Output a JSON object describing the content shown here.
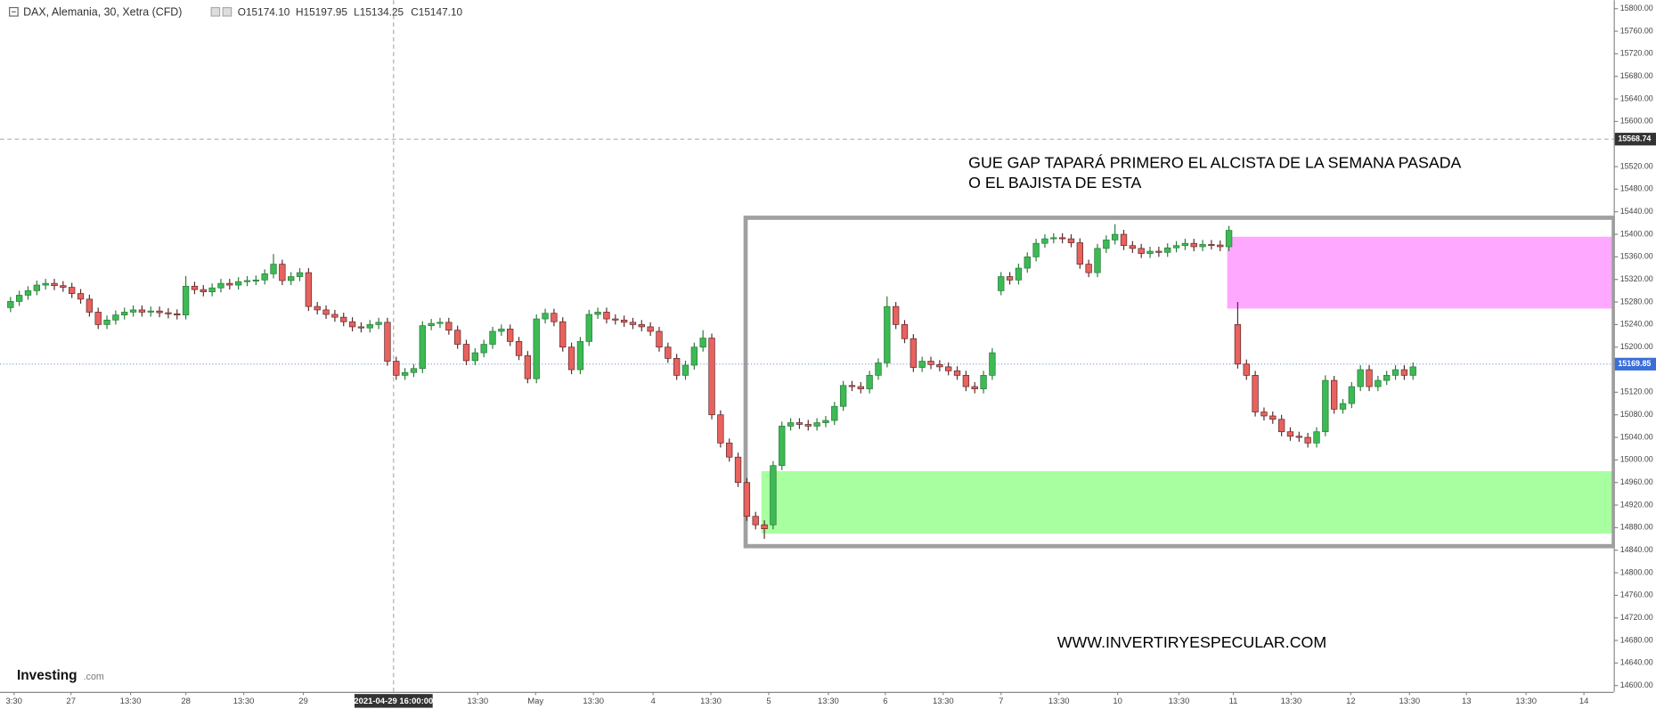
{
  "header": {
    "symbol": "DAX, Alemania, 30, Xetra (CFD)",
    "open": "O15174.10",
    "high": "H15197.95",
    "low": "L15134.25",
    "close": "C15147.10"
  },
  "logo": {
    "brand": "Investing",
    "suffix": ".com"
  },
  "chart_data": {
    "type": "candlestick",
    "up_color": "#3cba54",
    "down_color": "#e8625f",
    "annotations": [
      "GUE GAP TAPARÁ PRIMERO EL ALCISTA DE LA SEMANA PASADA",
      "O EL BAJISTA DE ESTA",
      "WWW.INVERTIRYESPECULAR.COM"
    ],
    "crosshair_price": {
      "value": 15568.74,
      "label": "15568.74"
    },
    "last_price": {
      "value": 15169.85,
      "label": "15169.85"
    },
    "crosshair_time": {
      "value": 43.7,
      "label": "2021-04-29 16:00:00"
    },
    "xlim": [
      -1.2,
      182.9
    ],
    "ylim": [
      14588.8,
      15815
    ],
    "xticks": [
      {
        "value": 0.4,
        "label": "3:30"
      },
      {
        "value": 6.9,
        "label": "27"
      },
      {
        "value": 13.7,
        "label": "13:30"
      },
      {
        "value": 20,
        "label": "28"
      },
      {
        "value": 26.6,
        "label": "13:30"
      },
      {
        "value": 33.4,
        "label": "29"
      },
      {
        "value": 53.3,
        "label": "13:30"
      },
      {
        "value": 59.9,
        "label": "May"
      },
      {
        "value": 66.5,
        "label": "13:30"
      },
      {
        "value": 73.3,
        "label": "4"
      },
      {
        "value": 79.9,
        "label": "13:30"
      },
      {
        "value": 86.5,
        "label": "5"
      },
      {
        "value": 93.3,
        "label": "13:30"
      },
      {
        "value": 99.8,
        "label": "6"
      },
      {
        "value": 106.4,
        "label": "13:30"
      },
      {
        "value": 113,
        "label": "7"
      },
      {
        "value": 119.6,
        "label": "13:30"
      },
      {
        "value": 126.3,
        "label": "10"
      },
      {
        "value": 133.3,
        "label": "13:30"
      },
      {
        "value": 139.5,
        "label": "11"
      },
      {
        "value": 146.1,
        "label": "13:30"
      },
      {
        "value": 152.9,
        "label": "12"
      },
      {
        "value": 159.6,
        "label": "13:30"
      },
      {
        "value": 166.1,
        "label": "13"
      },
      {
        "value": 172.9,
        "label": "13:30"
      },
      {
        "value": 179.5,
        "label": "14"
      }
    ],
    "yticks": [
      {
        "value": 14600,
        "label": "14600.00"
      },
      {
        "value": 14640,
        "label": "14640.00"
      },
      {
        "value": 14680,
        "label": "14680.00"
      },
      {
        "value": 14720,
        "label": "14720.00"
      },
      {
        "value": 14760,
        "label": "14760.00"
      },
      {
        "value": 14800,
        "label": "14800.00"
      },
      {
        "value": 14840,
        "label": "14840.00"
      },
      {
        "value": 14880,
        "label": "14880.00"
      },
      {
        "value": 14920,
        "label": "14920.00"
      },
      {
        "value": 14960,
        "label": "14960.00"
      },
      {
        "value": 15000,
        "label": "15000.00"
      },
      {
        "value": 15040,
        "label": "15040.00"
      },
      {
        "value": 15080,
        "label": "15080.00"
      },
      {
        "value": 15120,
        "label": "15120.00"
      },
      {
        "value": 15200,
        "label": "15200.00"
      },
      {
        "value": 15240,
        "label": "15240.00"
      },
      {
        "value": 15280,
        "label": "15280.00"
      },
      {
        "value": 15320,
        "label": "15320.00"
      },
      {
        "value": 15360,
        "label": "15360.00"
      },
      {
        "value": 15400,
        "label": "15400.00"
      },
      {
        "value": 15440,
        "label": "15440.00"
      },
      {
        "value": 15480,
        "label": "15480.00"
      },
      {
        "value": 15520,
        "label": "15520.00"
      },
      {
        "value": 15600,
        "label": "15600.00"
      },
      {
        "value": 15640,
        "label": "15640.00"
      },
      {
        "value": 15680,
        "label": "15680.00"
      },
      {
        "value": 15720,
        "label": "15720.00"
      },
      {
        "value": 15760,
        "label": "15760.00"
      },
      {
        "value": 15800,
        "label": "15800.00"
      }
    ],
    "open": [
      15270,
      15281,
      15292,
      15300,
      15310,
      15313,
      15309,
      15306,
      15295,
      15285,
      15262,
      15240,
      15248,
      15257,
      15262,
      15266,
      15262,
      15264,
      15261,
      15259,
      15257,
      15308,
      15302,
      15298,
      15305,
      15313,
      15310,
      15316,
      15318,
      15319,
      15330,
      15347,
      15318,
      15325,
      15332,
      15272,
      15266,
      15258,
      15253,
      15245,
      15236,
      15234,
      15240,
      15244,
      15175,
      15150,
      15155,
      15162,
      15238,
      15242,
      15244,
      15230,
      15205,
      15176,
      15190,
      15205,
      15228,
      15232,
      15210,
      15185,
      15144,
      15250,
      15260,
      15245,
      15200,
      15160,
      15210,
      15258,
      15262,
      15250,
      15248,
      15244,
      15240,
      15236,
      15228,
      15200,
      15180,
      15150,
      15168,
      15200,
      15216,
      15080,
      15030,
      15005,
      14960,
      14900,
      14885,
      14885,
      14990,
      15060,
      15066,
      15063,
      15060,
      15066,
      15070,
      15095,
      15132,
      15130,
      15126,
      15150,
      15172,
      15272,
      15240,
      15215,
      15164,
      15175,
      15169,
      15165,
      15158,
      15150,
      15130,
      15126,
      15150,
      15300,
      15325,
      15319,
      15340,
      15360,
      15384,
      15392,
      15394,
      15392,
      15385,
      15347,
      15332,
      15375,
      15390,
      15400,
      15380,
      15375,
      15366,
      15370,
      15368,
      15376,
      15380,
      15384,
      15378,
      15382,
      15381,
      15378,
      15240,
      15170,
      15150,
      15085,
      15078,
      15072,
      15050,
      15042,
      15040,
      15030,
      15050,
      15141,
      15090,
      15100,
      15130,
      15160,
      15130,
      15141,
      15150,
      15160,
      15150
    ],
    "high": [
      15289,
      15300,
      15308,
      15318,
      15321,
      15321,
      15317,
      15314,
      15303,
      15293,
      15270,
      15256,
      15265,
      15270,
      15274,
      15274,
      15272,
      15272,
      15269,
      15267,
      15326,
      15316,
      15310,
      15313,
      15321,
      15321,
      15324,
      15326,
      15327,
      15338,
      15365,
      15355,
      15333,
      15340,
      15340,
      15280,
      15274,
      15266,
      15261,
      15253,
      15244,
      15248,
      15252,
      15252,
      15183,
      15163,
      15170,
      15246,
      15250,
      15252,
      15252,
      15238,
      15213,
      15198,
      15213,
      15236,
      15240,
      15240,
      15218,
      15193,
      15258,
      15268,
      15268,
      15253,
      15208,
      15218,
      15266,
      15270,
      15270,
      15258,
      15256,
      15252,
      15248,
      15244,
      15236,
      15208,
      15188,
      15176,
      15208,
      15230,
      15224,
      15088,
      15038,
      15013,
      14968,
      14908,
      14893,
      14998,
      15068,
      15074,
      15074,
      15071,
      15074,
      15078,
      15103,
      15140,
      15140,
      15138,
      15158,
      15180,
      15290,
      15280,
      15248,
      15223,
      15183,
      15183,
      15177,
      15173,
      15166,
      15158,
      15138,
      15158,
      15198,
      15333,
      15333,
      15348,
      15368,
      15392,
      15400,
      15402,
      15402,
      15400,
      15393,
      15355,
      15383,
      15398,
      15418,
      15408,
      15388,
      15383,
      15378,
      15378,
      15384,
      15388,
      15392,
      15392,
      15390,
      15390,
      15389,
      15415,
      15280,
      15178,
      15158,
      15093,
      15086,
      15080,
      15058,
      15050,
      15048,
      15058,
      15150,
      15149,
      15108,
      15138,
      15168,
      15168,
      15149,
      15158,
      15168,
      15168,
      15173
    ],
    "low": [
      15262,
      15273,
      15284,
      15292,
      15302,
      15301,
      15298,
      15287,
      15277,
      15254,
      15232,
      15232,
      15240,
      15249,
      15254,
      15254,
      15254,
      15253,
      15251,
      15249,
      15249,
      15294,
      15290,
      15290,
      15297,
      15302,
      15302,
      15308,
      15310,
      15311,
      15322,
      15310,
      15310,
      15317,
      15264,
      15258,
      15250,
      15245,
      15237,
      15228,
      15226,
      15226,
      15232,
      15167,
      15142,
      15142,
      15147,
      15154,
      15230,
      15234,
      15222,
      15197,
      15168,
      15168,
      15182,
      15197,
      15220,
      15202,
      15177,
      15136,
      15136,
      15242,
      15237,
      15192,
      15152,
      15152,
      15202,
      15250,
      15242,
      15240,
      15236,
      15232,
      15228,
      15220,
      15192,
      15172,
      15142,
      15142,
      15160,
      15192,
      15072,
      15022,
      14997,
      14952,
      14892,
      14877,
      14860,
      14877,
      14982,
      15052,
      15055,
      15052,
      15052,
      15058,
      15062,
      15087,
      15122,
      15118,
      15118,
      15142,
      15164,
      15232,
      15207,
      15156,
      15156,
      15161,
      15157,
      15150,
      15142,
      15122,
      15118,
      15118,
      15142,
      15292,
      15311,
      15311,
      15332,
      15352,
      15376,
      15384,
      15384,
      15377,
      15339,
      15324,
      15324,
      15367,
      15382,
      15372,
      15367,
      15358,
      15358,
      15360,
      15360,
      15368,
      15372,
      15370,
      15370,
      15373,
      15370,
      15370,
      15162,
      15142,
      15077,
      15070,
      15064,
      15042,
      15034,
      15032,
      15022,
      15022,
      15042,
      15082,
      15082,
      15092,
      15122,
      15122,
      15122,
      15133,
      15142,
      15142,
      15142
    ],
    "close": [
      15281,
      15292,
      15300,
      15310,
      15313,
      15309,
      15306,
      15295,
      15285,
      15262,
      15240,
      15248,
      15257,
      15262,
      15266,
      15262,
      15264,
      15261,
      15259,
      15257,
      15308,
      15302,
      15298,
      15305,
      15313,
      15310,
      15316,
      15318,
      15319,
      15330,
      15347,
      15318,
      15325,
      15332,
      15272,
      15266,
      15258,
      15253,
      15245,
      15236,
      15234,
      15240,
      15244,
      15175,
      15150,
      15155,
      15162,
      15238,
      15242,
      15244,
      15230,
      15205,
      15176,
      15190,
      15205,
      15228,
      15232,
      15210,
      15185,
      15144,
      15250,
      15260,
      15245,
      15200,
      15160,
      15210,
      15258,
      15262,
      15250,
      15248,
      15244,
      15240,
      15236,
      15228,
      15200,
      15180,
      15150,
      15168,
      15200,
      15216,
      15080,
      15030,
      15005,
      14960,
      14900,
      14885,
      14878,
      14990,
      15060,
      15066,
      15063,
      15060,
      15066,
      15070,
      15095,
      15132,
      15130,
      15126,
      15150,
      15172,
      15272,
      15240,
      15215,
      15164,
      15175,
      15169,
      15165,
      15158,
      15150,
      15130,
      15126,
      15150,
      15190,
      15325,
      15319,
      15340,
      15360,
      15384,
      15392,
      15394,
      15392,
      15385,
      15347,
      15332,
      15375,
      15390,
      15400,
      15380,
      15375,
      15366,
      15370,
      15368,
      15376,
      15380,
      15384,
      15378,
      15382,
      15381,
      15378,
      15407,
      15170,
      15150,
      15085,
      15078,
      15072,
      15050,
      15042,
      15040,
      15030,
      15050,
      15141,
      15090,
      15100,
      15130,
      15160,
      15130,
      15141,
      15150,
      15160,
      15150,
      15165
    ]
  }
}
